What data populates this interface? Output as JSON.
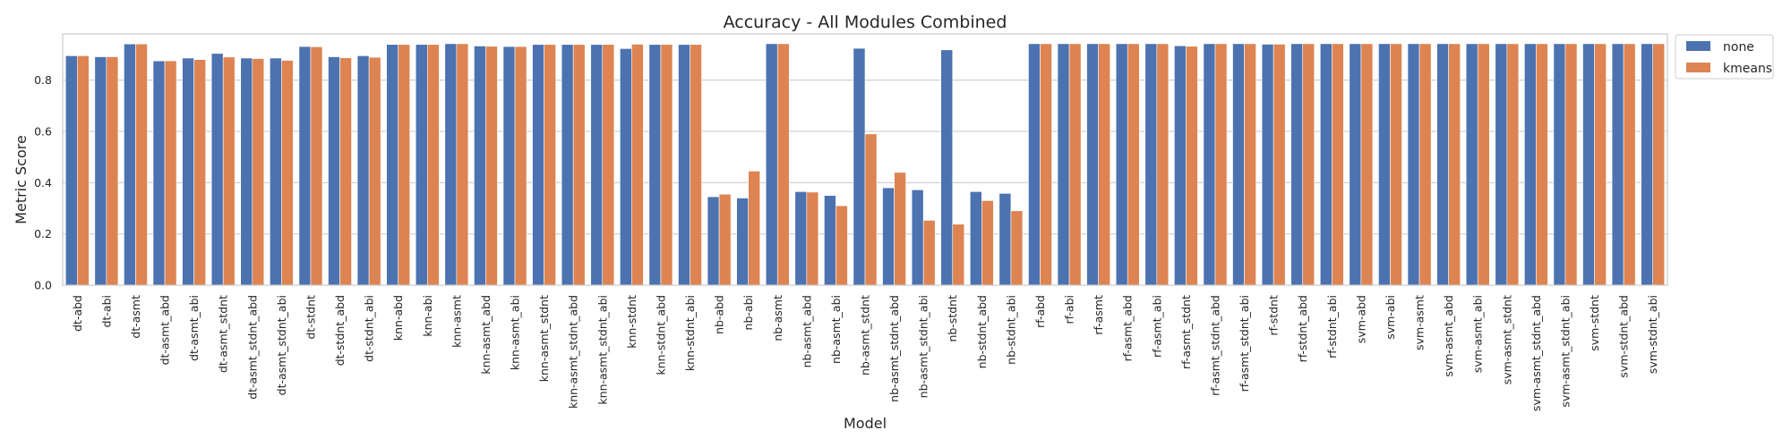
{
  "chart_data": {
    "type": "bar",
    "title": "Accuracy - All Modules Combined",
    "xlabel": "Model",
    "ylabel": "Metric Score",
    "ylim": [
      0,
      0.98
    ],
    "yticks": [
      0.0,
      0.2,
      0.4,
      0.6,
      0.8
    ],
    "ytick_labels": [
      "0.0",
      "0.2",
      "0.4",
      "0.6",
      "0.8"
    ],
    "grid": true,
    "legend_placement": "outside-top-right",
    "categories": [
      "dt-abd",
      "dt-abi",
      "dt-asmt",
      "dt-asmt_abd",
      "dt-asmt_abi",
      "dt-asmt_stdnt",
      "dt-asmt_stdnt_abd",
      "dt-asmt_stdnt_abi",
      "dt-stdnt",
      "dt-stdnt_abd",
      "dt-stdnt_abi",
      "knn-abd",
      "knn-abi",
      "knn-asmt",
      "knn-asmt_abd",
      "knn-asmt_abi",
      "knn-asmt_stdnt",
      "knn-asmt_stdnt_abd",
      "knn-asmt_stdnt_abi",
      "knn-stdnt",
      "knn-stdnt_abd",
      "knn-stdnt_abi",
      "nb-abd",
      "nb-abi",
      "nb-asmt",
      "nb-asmt_abd",
      "nb-asmt_abi",
      "nb-asmt_stdnt",
      "nb-asmt_stdnt_abd",
      "nb-asmt_stdnt_abi",
      "nb-stdnt",
      "nb-stdnt_abd",
      "nb-stdnt_abi",
      "rf-abd",
      "rf-abi",
      "rf-asmt",
      "rf-asmt_abd",
      "rf-asmt_abi",
      "rf-asmt_stdnt",
      "rf-asmt_stdnt_abd",
      "rf-asmt_stdnt_abi",
      "rf-stdnt",
      "rf-stdnt_abd",
      "rf-stdnt_abi",
      "svm-abd",
      "svm-abi",
      "svm-asmt",
      "svm-asmt_abd",
      "svm-asmt_abi",
      "svm-asmt_stdnt",
      "svm-asmt_stdnt_abd",
      "svm-asmt_stdnt_abi",
      "svm-stdnt",
      "svm-stdnt_abd",
      "svm-stdnt_abi"
    ],
    "series": [
      {
        "name": "none",
        "color": "#4c72b0",
        "values": [
          0.895,
          0.891,
          0.941,
          0.875,
          0.886,
          0.904,
          0.886,
          0.886,
          0.931,
          0.891,
          0.895,
          0.939,
          0.939,
          0.942,
          0.933,
          0.931,
          0.939,
          0.939,
          0.939,
          0.923,
          0.939,
          0.939,
          0.345,
          0.34,
          0.942,
          0.365,
          0.35,
          0.924,
          0.38,
          0.372,
          0.918,
          0.365,
          0.358,
          0.942,
          0.942,
          0.942,
          0.942,
          0.942,
          0.934,
          0.942,
          0.942,
          0.94,
          0.942,
          0.942,
          0.942,
          0.942,
          0.942,
          0.942,
          0.942,
          0.942,
          0.942,
          0.942,
          0.942,
          0.942,
          0.942
        ]
      },
      {
        "name": "kmeans",
        "color": "#dd8452",
        "values": [
          0.895,
          0.891,
          0.941,
          0.875,
          0.88,
          0.89,
          0.884,
          0.877,
          0.93,
          0.887,
          0.889,
          0.939,
          0.939,
          0.942,
          0.932,
          0.931,
          0.939,
          0.939,
          0.939,
          0.94,
          0.939,
          0.939,
          0.355,
          0.445,
          0.942,
          0.363,
          0.31,
          0.59,
          0.44,
          0.253,
          0.238,
          0.33,
          0.29,
          0.942,
          0.942,
          0.942,
          0.942,
          0.942,
          0.932,
          0.942,
          0.942,
          0.94,
          0.942,
          0.942,
          0.942,
          0.942,
          0.942,
          0.942,
          0.942,
          0.942,
          0.942,
          0.942,
          0.942,
          0.942,
          0.942
        ]
      }
    ]
  }
}
